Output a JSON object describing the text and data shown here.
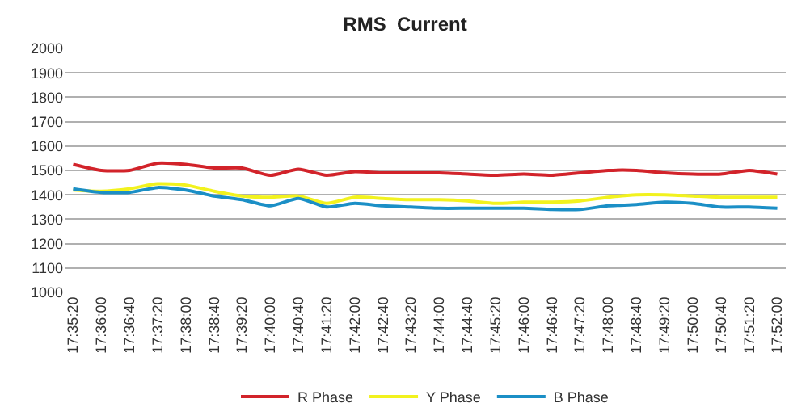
{
  "chart_data": {
    "type": "line",
    "title": "RMS  Current",
    "categories": [
      "17:35:20",
      "17:36:00",
      "17:36:40",
      "17:37:20",
      "17:38:00",
      "17:38:40",
      "17:39:20",
      "17:40:00",
      "17:40:40",
      "17:41:20",
      "17:42:00",
      "17:42:40",
      "17:43:20",
      "17:44:00",
      "17:44:40",
      "17:45:20",
      "17:46:00",
      "17:46:40",
      "17:47:20",
      "17:48:00",
      "17:48:40",
      "17:49:20",
      "17:50:00",
      "17:50:40",
      "17:51:20",
      "17:52:00"
    ],
    "series": [
      {
        "name": "R Phase",
        "color": "#d2232a",
        "values": [
          1525,
          1500,
          1500,
          1530,
          1525,
          1510,
          1510,
          1480,
          1505,
          1480,
          1495,
          1490,
          1490,
          1490,
          1485,
          1480,
          1485,
          1480,
          1490,
          1500,
          1500,
          1490,
          1485,
          1485,
          1500,
          1485
        ]
      },
      {
        "name": "Y Phase",
        "color": "#f2f21e",
        "values": [
          1420,
          1415,
          1425,
          1445,
          1440,
          1415,
          1395,
          1390,
          1395,
          1365,
          1390,
          1385,
          1380,
          1380,
          1375,
          1365,
          1370,
          1370,
          1375,
          1390,
          1400,
          1400,
          1395,
          1390,
          1390,
          1390
        ]
      },
      {
        "name": "B Phase",
        "color": "#1b8fc6",
        "values": [
          1425,
          1410,
          1410,
          1430,
          1420,
          1395,
          1380,
          1355,
          1385,
          1350,
          1365,
          1355,
          1350,
          1345,
          1345,
          1345,
          1345,
          1340,
          1340,
          1355,
          1360,
          1370,
          1365,
          1350,
          1350,
          1345
        ]
      }
    ],
    "ylim": [
      1000,
      2000
    ],
    "yticks": [
      1000,
      1100,
      1200,
      1300,
      1400,
      1500,
      1600,
      1700,
      1800,
      1900,
      2000
    ],
    "grid": "y",
    "legend": "bottom",
    "marker": "none",
    "line_style": "solid"
  }
}
